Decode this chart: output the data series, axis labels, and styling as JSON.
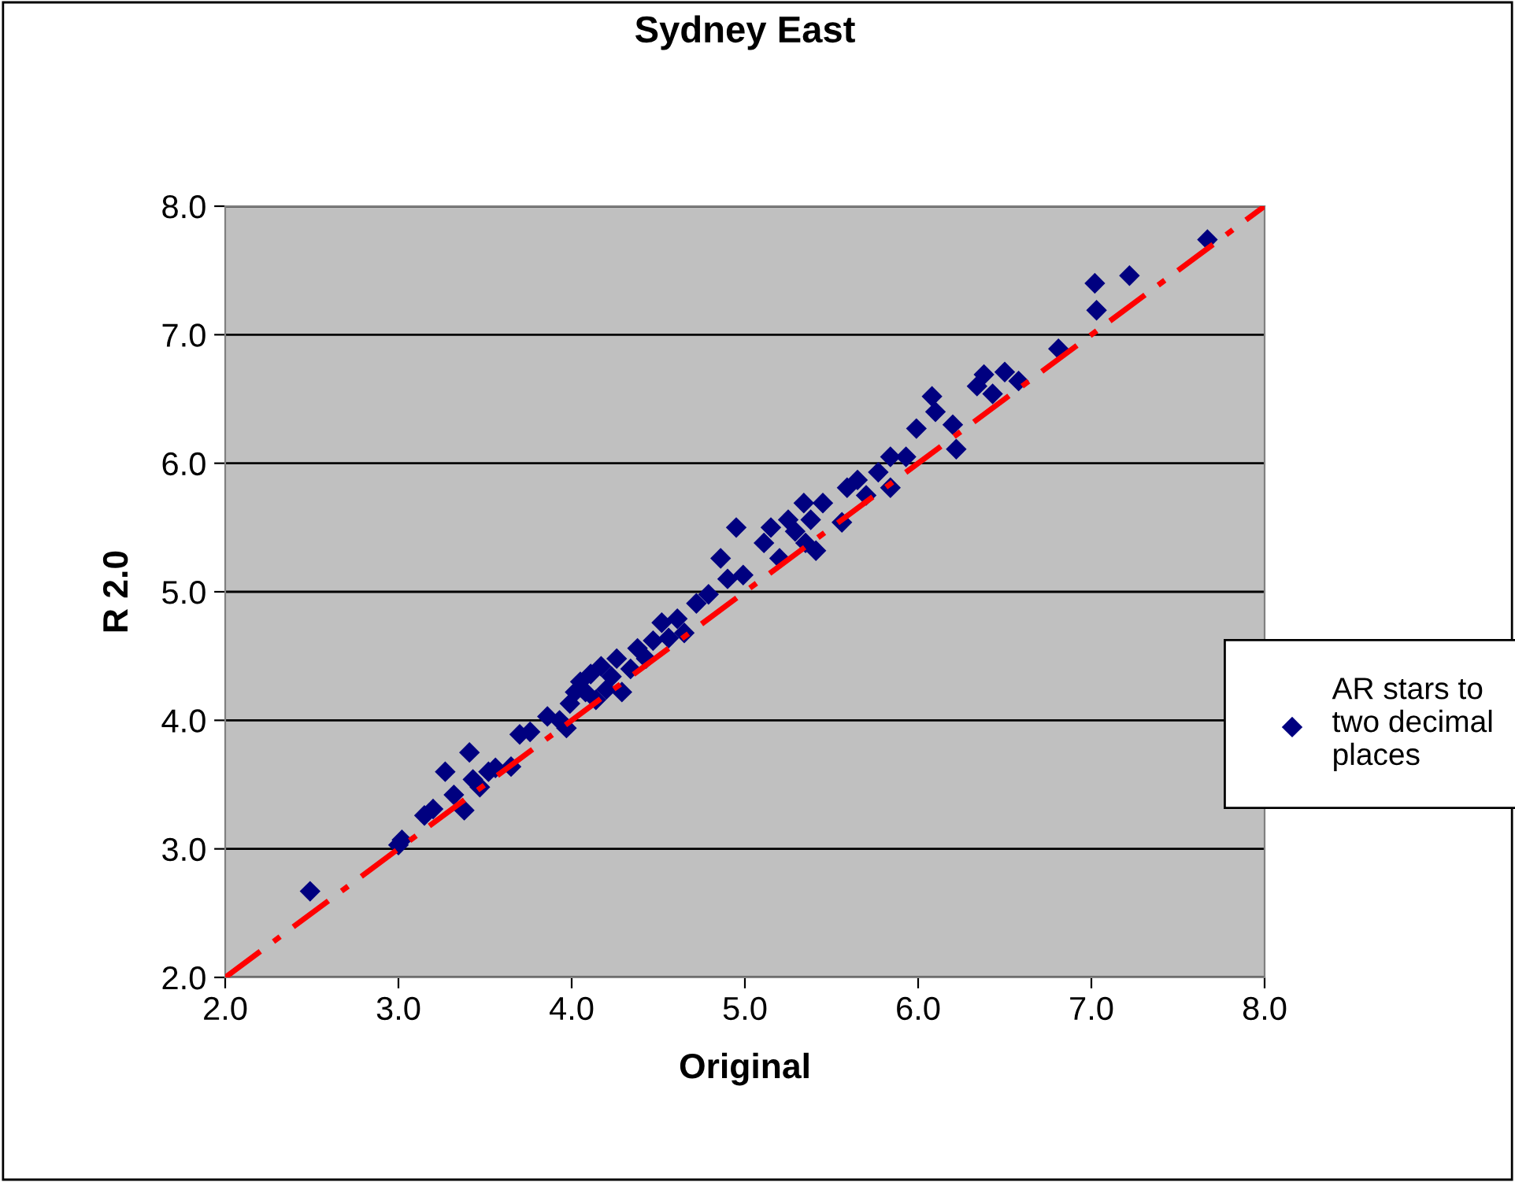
{
  "chart_data": {
    "type": "scatter",
    "title": "Sydney East",
    "xlabel": "Original",
    "ylabel": "R 2.0",
    "xlim": [
      2.0,
      8.0
    ],
    "ylim": [
      2.0,
      8.0
    ],
    "xticks": [
      {
        "value": 2,
        "label": "2.0"
      },
      {
        "value": 3,
        "label": "3.0"
      },
      {
        "value": 4,
        "label": "4.0"
      },
      {
        "value": 5,
        "label": "5.0"
      },
      {
        "value": 6,
        "label": "6.0"
      },
      {
        "value": 7,
        "label": "7.0"
      },
      {
        "value": 8,
        "label": "8.0"
      }
    ],
    "yticks": [
      {
        "value": 2,
        "label": "2.0"
      },
      {
        "value": 3,
        "label": "3.0"
      },
      {
        "value": 4,
        "label": "4.0"
      },
      {
        "value": 5,
        "label": "5.0"
      },
      {
        "value": 6,
        "label": "6.0"
      },
      {
        "value": 7,
        "label": "7.0"
      },
      {
        "value": 8,
        "label": "8.0"
      }
    ],
    "grid": "y",
    "legend": "right",
    "series": [
      {
        "name": "AR stars to two decimal places",
        "marker": "diamond",
        "color": "#000080",
        "x": [
          2.49,
          3.0,
          3.02,
          3.15,
          3.2,
          3.27,
          3.32,
          3.38,
          3.41,
          3.43,
          3.47,
          3.52,
          3.56,
          3.65,
          3.7,
          3.76,
          3.86,
          3.93,
          3.97,
          3.99,
          4.02,
          4.05,
          4.08,
          4.11,
          4.14,
          4.17,
          4.2,
          4.23,
          4.26,
          4.29,
          4.34,
          4.38,
          4.43,
          4.47,
          4.52,
          4.56,
          4.61,
          4.65,
          4.72,
          4.79,
          4.86,
          4.9,
          4.95,
          4.99,
          5.11,
          5.15,
          5.2,
          5.25,
          5.29,
          5.34,
          5.35,
          5.38,
          5.41,
          5.45,
          5.56,
          5.59,
          5.65,
          5.7,
          5.77,
          5.84,
          5.84,
          5.93,
          5.99,
          6.08,
          6.1,
          6.2,
          6.22,
          6.34,
          6.38,
          6.43,
          6.5,
          6.58,
          6.81,
          7.02,
          7.03,
          7.22,
          7.67
        ],
        "values": [
          2.67,
          3.03,
          3.07,
          3.26,
          3.31,
          3.6,
          3.42,
          3.3,
          3.75,
          3.54,
          3.48,
          3.6,
          3.63,
          3.64,
          3.89,
          3.91,
          4.03,
          4.0,
          3.94,
          4.13,
          4.22,
          4.3,
          4.22,
          4.36,
          4.16,
          4.42,
          4.24,
          4.34,
          4.48,
          4.22,
          4.4,
          4.56,
          4.48,
          4.62,
          4.76,
          4.64,
          4.79,
          4.68,
          4.91,
          4.98,
          5.26,
          5.1,
          5.5,
          5.13,
          5.38,
          5.5,
          5.26,
          5.56,
          5.47,
          5.69,
          5.38,
          5.56,
          5.32,
          5.69,
          5.54,
          5.81,
          5.87,
          5.75,
          5.93,
          5.81,
          6.05,
          6.05,
          6.27,
          6.52,
          6.4,
          6.3,
          6.11,
          6.6,
          6.69,
          6.54,
          6.71,
          6.64,
          6.89,
          7.4,
          7.19,
          7.46,
          7.74
        ]
      },
      {
        "type": "line",
        "color": "#ff0000",
        "line_style": "dashdot",
        "x": [
          2.0,
          8.0
        ],
        "values": [
          2.0,
          8.0
        ]
      }
    ]
  }
}
